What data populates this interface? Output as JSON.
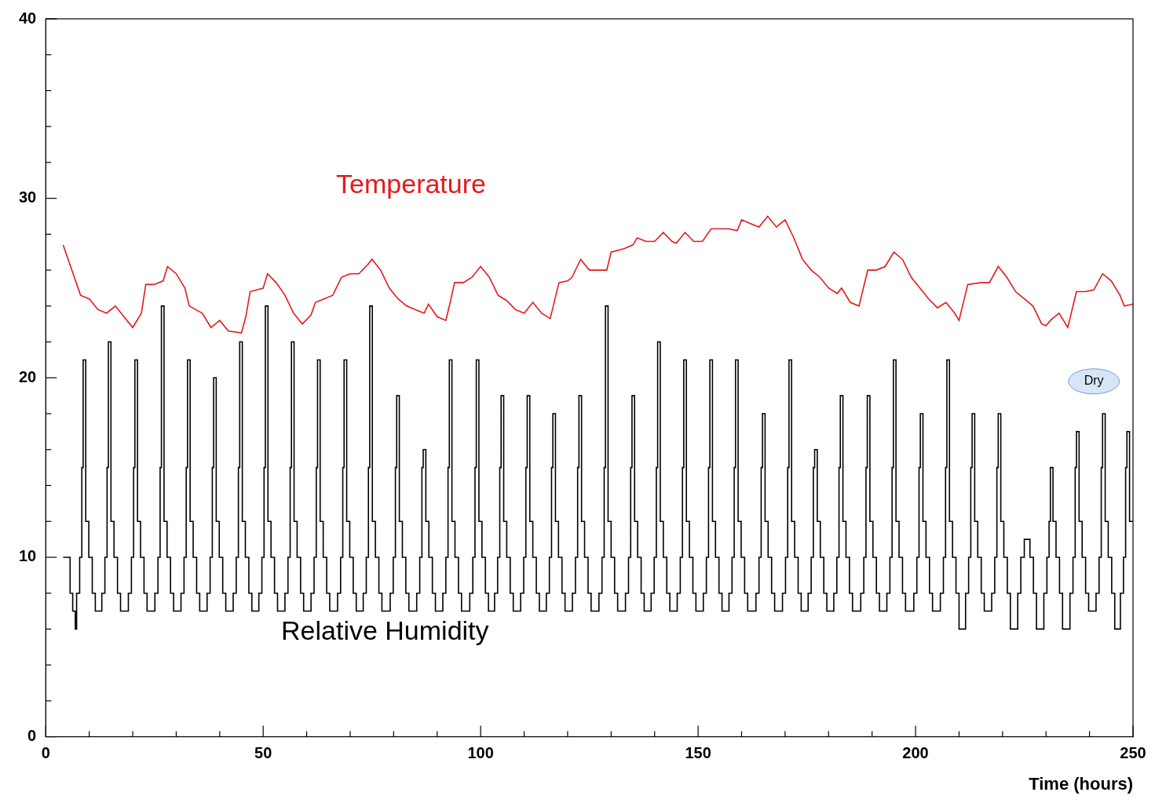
{
  "chart_data": {
    "type": "line",
    "x_label": "Time (hours)",
    "xlim": [
      0,
      250
    ],
    "xticks": [
      0,
      50,
      100,
      150,
      200,
      250
    ],
    "ylim": [
      0,
      40
    ],
    "yticks": [
      0,
      10,
      20,
      30,
      40
    ],
    "grid": false,
    "series": [
      {
        "name": "Temperature",
        "color": "#e41a1c",
        "line_style": "solid",
        "label_x": 84,
        "label_y": 30.7,
        "x": [
          4,
          6,
          8,
          10,
          12,
          14,
          16,
          18,
          20,
          22,
          23,
          25,
          27,
          28,
          30,
          32,
          33,
          36,
          38,
          40,
          42,
          45,
          46,
          47,
          50,
          51,
          53,
          55,
          57,
          59,
          61,
          62,
          64,
          66,
          68,
          70,
          72,
          74,
          75,
          77,
          79,
          81,
          83,
          85,
          87,
          88,
          90,
          92,
          93,
          94,
          96,
          98,
          100,
          102,
          104,
          106,
          108,
          110,
          112,
          114,
          116,
          118,
          120,
          121,
          123,
          125,
          127,
          129,
          130,
          133,
          135,
          136,
          138,
          140,
          142,
          144,
          145,
          147,
          149,
          151,
          153,
          155,
          157,
          159,
          160,
          162,
          164,
          166,
          168,
          170,
          172,
          174,
          176,
          178,
          180,
          182,
          183,
          185,
          187,
          189,
          191,
          193,
          195,
          197,
          199,
          201,
          203,
          205,
          207,
          209,
          210,
          212,
          215,
          217,
          219,
          221,
          223,
          225,
          227,
          229,
          230,
          231,
          233,
          234,
          235,
          237,
          239,
          241,
          243,
          245,
          247,
          248,
          250
        ],
        "values": [
          27.4,
          26.0,
          24.6,
          24.4,
          23.8,
          23.6,
          24.0,
          23.4,
          22.8,
          23.6,
          25.2,
          25.2,
          25.4,
          26.2,
          25.8,
          25.0,
          24.0,
          23.6,
          22.8,
          23.2,
          22.6,
          22.5,
          23.4,
          24.8,
          25.0,
          25.8,
          25.3,
          24.6,
          23.6,
          23.0,
          23.5,
          24.2,
          24.4,
          24.6,
          25.6,
          25.8,
          25.8,
          26.3,
          26.6,
          26.0,
          25.0,
          24.4,
          24.0,
          23.8,
          23.6,
          24.1,
          23.4,
          23.2,
          24.2,
          25.3,
          25.3,
          25.6,
          26.2,
          25.6,
          24.6,
          24.3,
          23.8,
          23.6,
          24.2,
          23.6,
          23.3,
          25.3,
          25.4,
          25.6,
          26.6,
          26.0,
          26.0,
          26.0,
          27.0,
          27.2,
          27.4,
          27.8,
          27.6,
          27.6,
          28.1,
          27.6,
          27.5,
          28.1,
          27.6,
          27.6,
          28.3,
          28.3,
          28.3,
          28.2,
          28.8,
          28.6,
          28.4,
          29.0,
          28.4,
          28.8,
          27.8,
          26.6,
          26.0,
          25.6,
          25.0,
          24.7,
          25.0,
          24.2,
          24.0,
          26.0,
          26.0,
          26.2,
          27.0,
          26.6,
          25.6,
          25.0,
          24.4,
          23.9,
          24.2,
          23.6,
          23.2,
          25.2,
          25.3,
          25.3,
          26.2,
          25.6,
          24.8,
          24.4,
          24.0,
          23.0,
          22.9,
          23.2,
          23.6,
          23.2,
          22.8,
          24.8,
          24.8,
          24.9,
          25.8,
          25.4,
          24.6,
          24.0,
          24.1
        ]
      },
      {
        "name": "Relative Humidity",
        "color": "#000000",
        "line_style": "steps",
        "label_x": 78,
        "label_y": 5.8,
        "x": [
          4,
          5.6,
          6.2,
          6.8,
          7.1,
          7.8,
          8.3,
          8.6,
          9.2,
          9.9,
          10.7,
          11.4,
          12.9,
          13.6,
          14.1,
          14.4,
          15.0,
          15.7,
          16.5,
          17.2,
          19.0,
          19.7,
          20.2,
          20.5,
          21.1,
          21.8,
          22.6,
          23.3,
          25.1,
          25.8,
          26.3,
          26.6,
          27.2,
          27.9,
          28.7,
          29.4,
          31.1,
          31.8,
          32.3,
          32.6,
          33.2,
          33.9,
          34.7,
          35.4,
          37.1,
          37.8,
          38.3,
          38.6,
          39.2,
          39.9,
          40.7,
          41.4,
          43.1,
          43.8,
          44.3,
          44.6,
          45.2,
          45.9,
          46.7,
          47.4,
          49.0,
          49.7,
          50.2,
          50.5,
          51.1,
          51.8,
          52.6,
          53.3,
          55.0,
          55.7,
          56.2,
          56.5,
          57.1,
          57.8,
          58.6,
          59.3,
          61.0,
          61.7,
          62.2,
          62.5,
          63.1,
          63.8,
          64.6,
          65.3,
          67.1,
          67.8,
          68.3,
          68.6,
          69.2,
          69.9,
          70.7,
          71.4,
          73.0,
          73.7,
          74.2,
          74.5,
          75.1,
          75.8,
          76.6,
          77.3,
          79.2,
          79.9,
          80.4,
          80.7,
          81.3,
          82.0,
          82.8,
          83.5,
          85.3,
          86.0,
          86.5,
          86.8,
          87.4,
          88.1,
          88.9,
          89.6,
          91.3,
          92.0,
          92.5,
          92.8,
          93.4,
          94.1,
          94.9,
          95.6,
          97.5,
          98.2,
          98.7,
          99.0,
          99.6,
          100.3,
          101.1,
          101.8,
          103.2,
          103.9,
          104.4,
          104.7,
          105.3,
          106.0,
          106.8,
          107.5,
          109.2,
          109.9,
          110.4,
          110.7,
          111.3,
          112.0,
          112.8,
          113.5,
          115.1,
          115.8,
          116.3,
          116.6,
          117.2,
          117.9,
          118.7,
          119.4,
          121.1,
          121.8,
          122.3,
          122.6,
          123.2,
          123.9,
          124.7,
          125.4,
          127.2,
          127.9,
          128.4,
          128.7,
          129.3,
          130.0,
          130.8,
          131.5,
          133.3,
          134.0,
          134.5,
          134.8,
          135.4,
          136.1,
          136.9,
          137.6,
          139.2,
          139.9,
          140.4,
          140.7,
          141.3,
          142.0,
          142.8,
          143.5,
          145.2,
          145.9,
          146.4,
          146.7,
          147.3,
          148.0,
          148.8,
          149.5,
          151.2,
          151.9,
          152.4,
          152.7,
          153.3,
          154.0,
          154.8,
          155.5,
          157.1,
          157.8,
          158.3,
          158.6,
          159.2,
          159.9,
          160.7,
          161.4,
          163.3,
          164.0,
          164.5,
          164.8,
          165.4,
          166.1,
          166.9,
          167.6,
          169.4,
          170.1,
          170.6,
          170.9,
          171.5,
          172.2,
          173.0,
          173.7,
          175.3,
          176.0,
          176.5,
          176.8,
          177.4,
          178.1,
          178.9,
          179.6,
          181.2,
          181.9,
          182.4,
          182.7,
          183.3,
          184.0,
          184.8,
          185.5,
          187.4,
          188.1,
          188.6,
          188.9,
          189.5,
          190.2,
          191.0,
          191.7,
          193.4,
          194.1,
          194.6,
          194.9,
          195.5,
          196.2,
          197.0,
          197.7,
          199.6,
          200.3,
          200.8,
          201.1,
          201.7,
          202.4,
          203.2,
          203.9,
          205.7,
          206.4,
          206.9,
          207.2,
          207.8,
          208.5,
          209.3,
          210.0,
          211.5,
          212.2,
          212.7,
          213.0,
          213.6,
          214.3,
          215.1,
          215.8,
          217.5,
          218.2,
          218.7,
          219.0,
          219.6,
          220.3,
          221.1,
          221.8,
          223.5,
          224.2,
          225.0,
          226.3,
          227.1,
          227.8,
          229.5,
          230.2,
          230.7,
          231.0,
          231.6,
          232.3,
          233.1,
          233.8,
          235.5,
          236.2,
          236.7,
          237.0,
          237.6,
          238.3,
          239.1,
          239.8,
          241.5,
          242.2,
          242.7,
          243.0,
          243.6,
          244.3,
          245.1,
          245.8,
          247.1,
          247.8,
          248.3,
          248.6,
          249.2,
          250
        ],
        "values": [
          10,
          8,
          7,
          6,
          8,
          10,
          15,
          21,
          12,
          10,
          8,
          7,
          8,
          10,
          15,
          22,
          12,
          10,
          8,
          7,
          8,
          10,
          15,
          21,
          12,
          10,
          8,
          7,
          8,
          10,
          15,
          24,
          12,
          10,
          8,
          7,
          8,
          10,
          15,
          21,
          12,
          10,
          8,
          7,
          8,
          10,
          15,
          20,
          12,
          10,
          8,
          7,
          8,
          10,
          15,
          22,
          12,
          10,
          8,
          7,
          8,
          10,
          15,
          24,
          12,
          10,
          8,
          7,
          8,
          10,
          15,
          22,
          12,
          10,
          8,
          7,
          8,
          10,
          15,
          21,
          12,
          10,
          8,
          7,
          8,
          10,
          15,
          21,
          12,
          10,
          8,
          7,
          8,
          10,
          15,
          24,
          12,
          10,
          8,
          7,
          8,
          10,
          15,
          19,
          12,
          10,
          8,
          7,
          8,
          10,
          15,
          16,
          12,
          10,
          8,
          7,
          8,
          10,
          15,
          21,
          12,
          10,
          8,
          7,
          8,
          10,
          15,
          21,
          12,
          10,
          8,
          7,
          8,
          10,
          15,
          19,
          12,
          10,
          8,
          7,
          8,
          10,
          15,
          19,
          12,
          10,
          8,
          7,
          8,
          10,
          15,
          18,
          12,
          10,
          8,
          7,
          8,
          10,
          15,
          19,
          12,
          10,
          8,
          7,
          8,
          10,
          15,
          24,
          12,
          10,
          8,
          7,
          8,
          10,
          15,
          19,
          12,
          10,
          8,
          7,
          8,
          10,
          15,
          22,
          12,
          10,
          8,
          7,
          8,
          10,
          15,
          21,
          12,
          10,
          8,
          7,
          8,
          10,
          15,
          21,
          12,
          10,
          8,
          7,
          8,
          10,
          15,
          21,
          12,
          10,
          8,
          7,
          8,
          10,
          15,
          18,
          12,
          10,
          8,
          7,
          8,
          10,
          15,
          21,
          12,
          10,
          8,
          7,
          8,
          10,
          15,
          16,
          12,
          10,
          8,
          7,
          8,
          10,
          15,
          19,
          12,
          10,
          8,
          7,
          8,
          10,
          15,
          19,
          12,
          10,
          8,
          7,
          8,
          10,
          15,
          21,
          12,
          10,
          8,
          7,
          8,
          10,
          15,
          18,
          12,
          10,
          8,
          7,
          8,
          10,
          15,
          21,
          12,
          10,
          8,
          6,
          8,
          10,
          15,
          18,
          12,
          10,
          8,
          7,
          8,
          10,
          15,
          18,
          12,
          10,
          8,
          6,
          8,
          10,
          11,
          10,
          8,
          6,
          8,
          10,
          12,
          15,
          12,
          10,
          8,
          6,
          8,
          10,
          15,
          17,
          12,
          10,
          8,
          7,
          8,
          10,
          15,
          18,
          12,
          10,
          8,
          6,
          8,
          10,
          15,
          17,
          12,
          12
        ]
      }
    ],
    "annotations": [
      {
        "text": "Dry",
        "x": 241,
        "y": 19.8
      }
    ]
  }
}
